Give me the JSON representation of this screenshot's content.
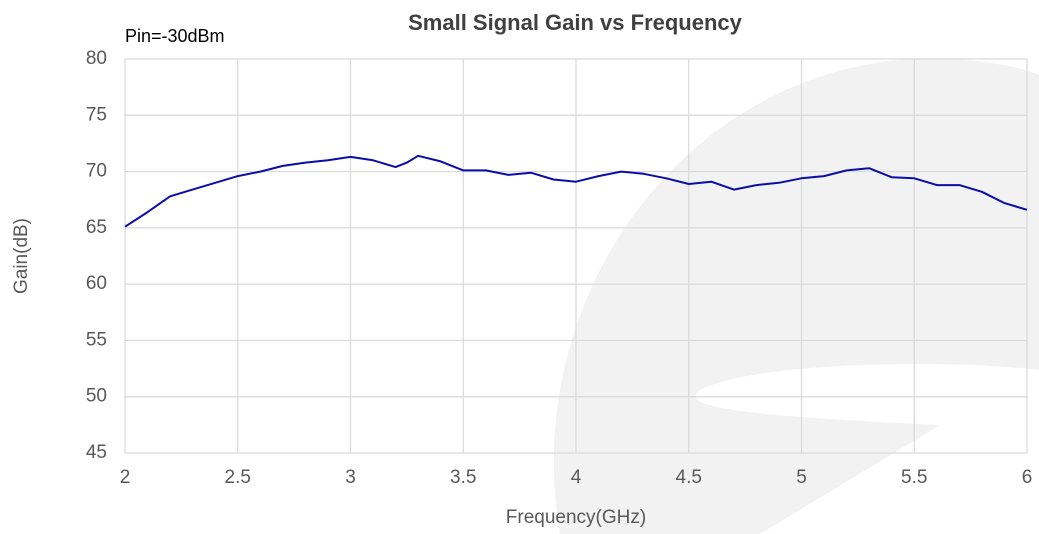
{
  "chart_data": {
    "type": "line",
    "title": "Small Signal Gain vs Frequency",
    "annotation": "Pin=-30dBm",
    "x_label": "Frequency(GHz)",
    "y_label": "Gain(dB)",
    "x": [
      2.0,
      2.1,
      2.2,
      2.3,
      2.4,
      2.5,
      2.6,
      2.7,
      2.8,
      2.9,
      3.0,
      3.1,
      3.2,
      3.25,
      3.3,
      3.4,
      3.5,
      3.6,
      3.7,
      3.8,
      3.9,
      4.0,
      4.1,
      4.2,
      4.3,
      4.4,
      4.5,
      4.6,
      4.7,
      4.8,
      4.9,
      5.0,
      5.1,
      5.2,
      5.3,
      5.4,
      5.5,
      5.6,
      5.7,
      5.8,
      5.9,
      6.0
    ],
    "series": [
      {
        "name": "Gain",
        "color": "#0c0ca8",
        "values": [
          65.1,
          66.4,
          67.8,
          68.4,
          69.0,
          69.6,
          70.0,
          70.5,
          70.8,
          71.0,
          71.3,
          71.0,
          70.4,
          70.8,
          71.4,
          70.9,
          70.1,
          70.1,
          69.7,
          69.9,
          69.3,
          69.1,
          69.6,
          70.0,
          69.8,
          69.4,
          68.9,
          69.1,
          68.4,
          68.8,
          69.0,
          69.4,
          69.6,
          70.1,
          70.3,
          69.5,
          69.4,
          68.8,
          68.8,
          68.2,
          67.2,
          66.6
        ]
      }
    ],
    "xlim": [
      2,
      6
    ],
    "xticks": [
      2,
      2.5,
      3,
      3.5,
      4,
      4.5,
      5,
      5.5,
      6
    ],
    "ylim": [
      45,
      80
    ],
    "yticks": [
      45,
      50,
      55,
      60,
      65,
      70,
      75,
      80
    ],
    "grid": true
  }
}
